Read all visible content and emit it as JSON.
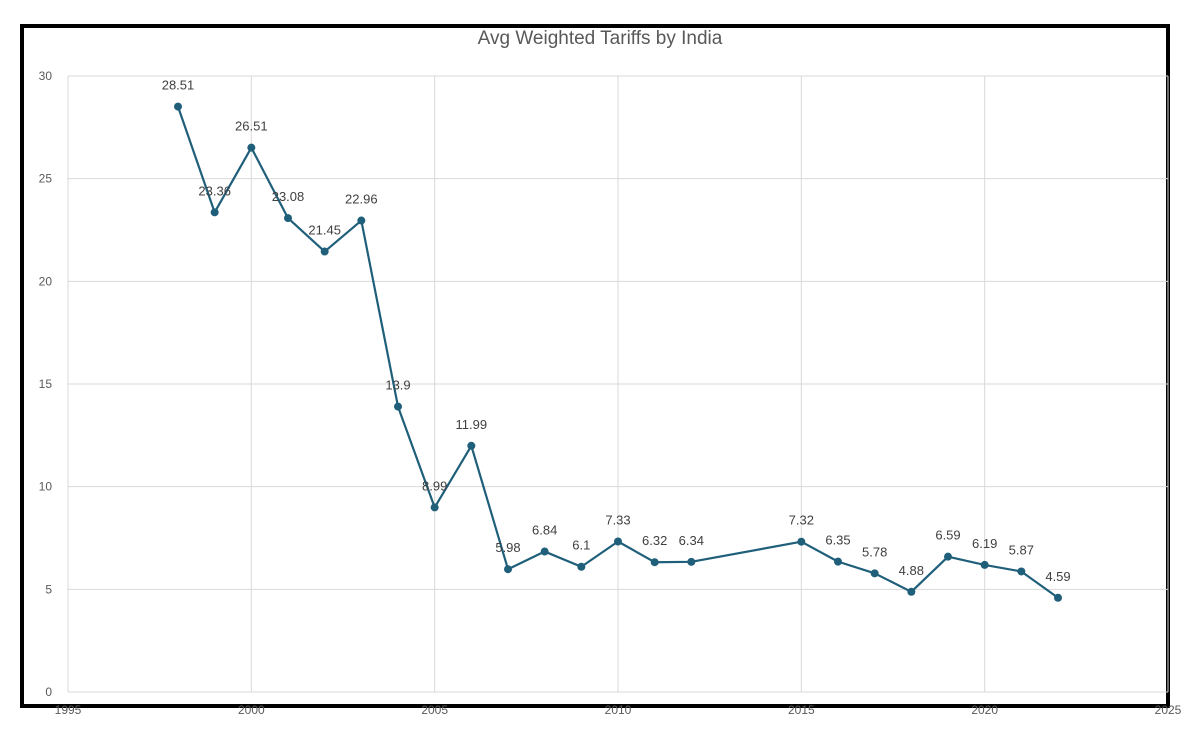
{
  "chart_data": {
    "type": "line",
    "title": "Avg Weighted Tariffs by India",
    "xlabel": "",
    "ylabel": "",
    "xlim": [
      1995,
      2025
    ],
    "ylim": [
      0,
      30
    ],
    "x_ticks": [
      "1995",
      "2000",
      "2005",
      "2010",
      "2015",
      "2020",
      "2025"
    ],
    "y_ticks": [
      "0",
      "5",
      "10",
      "15",
      "20",
      "25",
      "30"
    ],
    "grid": true,
    "legend": "none",
    "series": [
      {
        "color": "#1f5f7a",
        "points": [
          {
            "x": 1998,
            "y": 28.51,
            "label": "28.51"
          },
          {
            "x": 1999,
            "y": 23.36,
            "label": "23.36"
          },
          {
            "x": 2000,
            "y": 26.51,
            "label": "26.51"
          },
          {
            "x": 2001,
            "y": 23.08,
            "label": "23.08"
          },
          {
            "x": 2002,
            "y": 21.45,
            "label": "21.45"
          },
          {
            "x": 2003,
            "y": 22.96,
            "label": "22.96"
          },
          {
            "x": 2004,
            "y": 13.9,
            "label": "13.9"
          },
          {
            "x": 2005,
            "y": 8.99,
            "label": "8.99"
          },
          {
            "x": 2006,
            "y": 11.99,
            "label": "11.99"
          },
          {
            "x": 2007,
            "y": 5.98,
            "label": "5.98"
          },
          {
            "x": 2008,
            "y": 6.84,
            "label": "6.84"
          },
          {
            "x": 2009,
            "y": 6.1,
            "label": "6.1"
          },
          {
            "x": 2010,
            "y": 7.33,
            "label": "7.33"
          },
          {
            "x": 2011,
            "y": 6.32,
            "label": "6.32"
          },
          {
            "x": 2012,
            "y": 6.34,
            "label": "6.34"
          },
          {
            "x": 2015,
            "y": 7.32,
            "label": "7.32"
          },
          {
            "x": 2016,
            "y": 6.35,
            "label": "6.35"
          },
          {
            "x": 2017,
            "y": 5.78,
            "label": "5.78"
          },
          {
            "x": 2018,
            "y": 4.88,
            "label": "4.88"
          },
          {
            "x": 2019,
            "y": 6.59,
            "label": "6.59"
          },
          {
            "x": 2020,
            "y": 6.19,
            "label": "6.19"
          },
          {
            "x": 2021,
            "y": 5.87,
            "label": "5.87"
          },
          {
            "x": 2022,
            "y": 4.59,
            "label": "4.59"
          }
        ]
      }
    ]
  }
}
